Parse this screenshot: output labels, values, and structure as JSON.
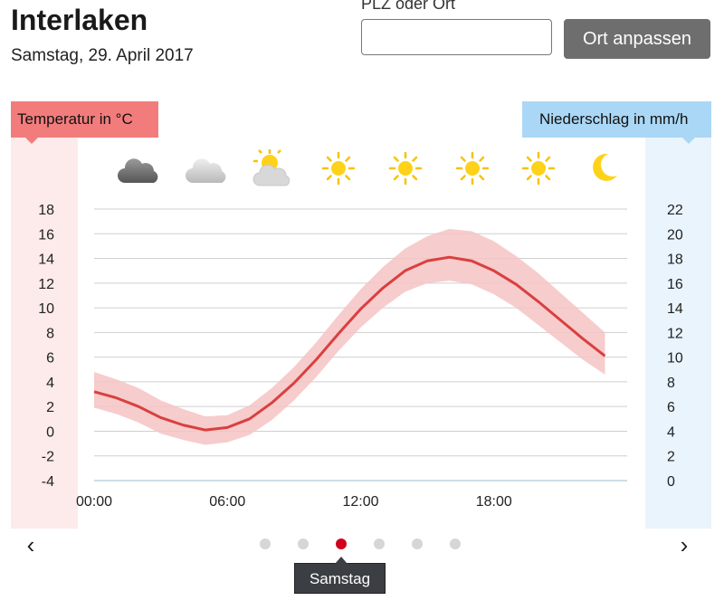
{
  "header": {
    "title": "Interlaken",
    "date": "Samstag, 29. April 2017"
  },
  "search": {
    "label": "PLZ oder Ort",
    "value": "",
    "button_label": "Ort anpassen"
  },
  "axes": {
    "temp_label": "Temperatur in °C",
    "rain_label": "Niederschlag in mm/h"
  },
  "weather_icons": [
    "cloud-dark-icon",
    "cloud-light-icon",
    "sun-behind-cloud-icon",
    "sun-icon",
    "sun-icon",
    "sun-icon",
    "sun-icon",
    "moon-icon"
  ],
  "chart_data": {
    "type": "line",
    "x": [
      0,
      1,
      2,
      3,
      4,
      5,
      6,
      7,
      8,
      9,
      10,
      11,
      12,
      13,
      14,
      15,
      16,
      17,
      18,
      19,
      20,
      21,
      22,
      23
    ],
    "series": [
      {
        "values": [
          3.2,
          2.7,
          2.0,
          1.1,
          0.5,
          0.1,
          0.3,
          1.0,
          2.3,
          3.9,
          5.8,
          7.9,
          9.9,
          11.6,
          13.0,
          13.8,
          14.1,
          13.8,
          13.0,
          11.9,
          10.5,
          9.0,
          7.5,
          6.1
        ],
        "color": "#d94040"
      }
    ],
    "band_upper": [
      4.8,
      4.2,
      3.5,
      2.5,
      1.8,
      1.2,
      1.3,
      2.1,
      3.5,
      5.2,
      7.2,
      9.4,
      11.5,
      13.3,
      14.8,
      15.8,
      16.4,
      16.2,
      15.4,
      14.2,
      12.8,
      11.2,
      9.6,
      8.0
    ],
    "band_lower": [
      1.9,
      1.4,
      0.7,
      -0.2,
      -0.7,
      -1.1,
      -0.9,
      -0.3,
      0.9,
      2.5,
      4.4,
      6.5,
      8.4,
      10.0,
      11.3,
      12.0,
      12.2,
      11.9,
      11.1,
      10.0,
      8.6,
      7.2,
      5.8,
      4.6
    ],
    "band_color": "#f6c3c3",
    "x_ticks": [
      "00:00",
      "06:00",
      "12:00",
      "18:00"
    ],
    "x_tick_hours": [
      0,
      6,
      12,
      18
    ],
    "xlim": [
      0,
      24
    ],
    "ylim": [
      -4,
      18
    ],
    "y_ticks": [
      "18",
      "16",
      "14",
      "12",
      "10",
      "8",
      "6",
      "4",
      "2",
      "0",
      "-2",
      "-4"
    ],
    "y2_ticks": [
      "22",
      "20",
      "18",
      "16",
      "14",
      "12",
      "10",
      "8",
      "6",
      "4",
      "2",
      "0"
    ],
    "grid": true
  },
  "pager": {
    "dots": 6,
    "active": 2,
    "active_label": "Samstag"
  },
  "icons": {
    "prev": "‹",
    "next": "›"
  }
}
